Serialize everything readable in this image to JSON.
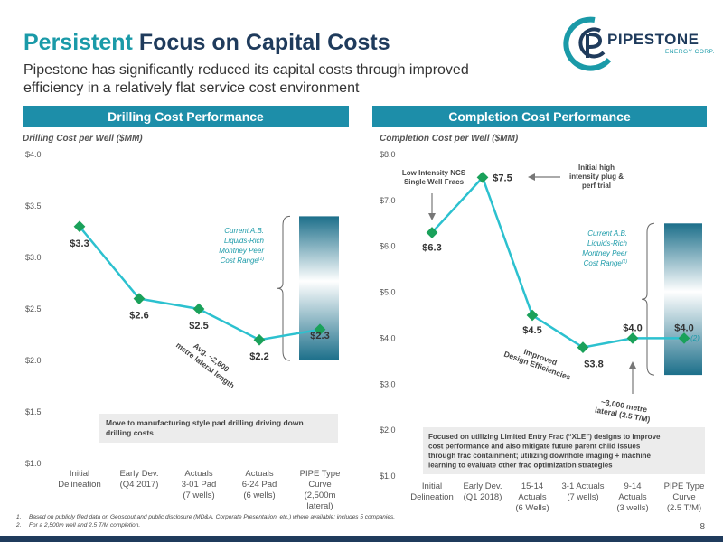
{
  "header": {
    "title_accent": "Persistent",
    "title_rest": " Focus on Capital Costs",
    "subtitle": "Pipestone has significantly reduced its capital costs through improved efficiency in a relatively flat service cost environment"
  },
  "logo": {
    "name": "PIPESTONE",
    "sub": "ENERGY CORP."
  },
  "colors": {
    "accent": "#1a9aa8",
    "navy": "#1f3b5c",
    "line": "#2cc1cf",
    "marker": "#1aa15a",
    "bar": "#1d8ea9"
  },
  "footnotes": [
    {
      "num": "1.",
      "text": "Based on publicly filed data on Geoscout and public disclosure (MD&A, Corporate Presentation, etc.) where available; includes 5 companies."
    },
    {
      "num": "2.",
      "text": "For a 2,500m well and 2.5 T/M completion."
    }
  ],
  "page_number": "8",
  "chart_data": [
    {
      "type": "line",
      "panel_title": "Drilling Cost Performance",
      "title": "Drilling Cost per Well ($MM)",
      "categories": [
        [
          "Initial",
          "Delineation"
        ],
        [
          "Early Dev.",
          "(Q4 2017)"
        ],
        [
          "Actuals",
          "3-01 Pad",
          "(7 wells)"
        ],
        [
          "Actuals",
          "6-24 Pad",
          "(6 wells)"
        ],
        [
          "PIPE Type",
          "Curve",
          "(2,500m",
          "lateral)"
        ]
      ],
      "values": [
        3.3,
        2.6,
        2.5,
        2.2,
        2.3
      ],
      "data_labels": [
        "$3.3",
        "$2.6",
        "$2.5",
        "$2.2",
        "$2.3"
      ],
      "ylim": [
        1.0,
        4.0
      ],
      "yticks": [
        1.0,
        1.5,
        2.0,
        2.5,
        3.0,
        3.5,
        4.0
      ],
      "ytick_labels": [
        "$1.0",
        "$1.5",
        "$2.0",
        "$2.5",
        "$3.0",
        "$3.5",
        "$4.0"
      ],
      "peer_range": [
        2.0,
        3.4
      ],
      "peer_label": [
        "Current A.B.",
        "Liquids-Rich",
        "Montney Peer",
        "Cost Range"
      ],
      "peer_sup": "(1)",
      "rotated_note": [
        "Avg. ~2,600",
        "metre lateral length"
      ],
      "callout": "Move to manufacturing style pad drilling driving down drilling costs"
    },
    {
      "type": "line",
      "panel_title": "Completion Cost Performance",
      "title": "Completion Cost per Well ($MM)",
      "categories": [
        [
          "Initial",
          "Delineation"
        ],
        [
          "Early Dev.",
          "(Q1 2018)"
        ],
        [
          "15-14",
          "Actuals",
          "(6 Wells)"
        ],
        [
          "3-1 Actuals",
          "(7 wells)"
        ],
        [
          "9-14",
          "Actuals",
          "(3 wells)"
        ],
        [
          "PIPE Type",
          "Curve",
          "(2.5 T/M)"
        ]
      ],
      "values": [
        6.3,
        7.5,
        4.5,
        3.8,
        4.0,
        4.0
      ],
      "data_labels": [
        "$6.3",
        "$7.5",
        "$4.5",
        "$3.8",
        "$4.0",
        "$4.0"
      ],
      "ylim": [
        1.0,
        8.0
      ],
      "yticks": [
        1.0,
        2.0,
        3.0,
        4.0,
        5.0,
        6.0,
        7.0,
        8.0
      ],
      "ytick_labels": [
        "$1.0",
        "$2.0",
        "$3.0",
        "$4.0",
        "$5.0",
        "$6.0",
        "$7.0",
        "$8.0"
      ],
      "peer_range": [
        3.2,
        6.5
      ],
      "peer_label": [
        "Current A.B.",
        "Liquids-Rich",
        "Montney Peer",
        "Cost Range"
      ],
      "peer_sup": "(1)",
      "note_2": "(2)",
      "ann_low": [
        "Low Intensity NCS",
        "Single Well Fracs"
      ],
      "ann_high": [
        "Initial high",
        "intensity plug &",
        "perf trial"
      ],
      "rotated_improved": [
        "Improved",
        "Design Efficiencies"
      ],
      "rotated_3000": [
        "~3,000 metre",
        "lateral (2.5 T/M)"
      ],
      "callout": "Focused on utilizing Limited Entry Frac (“XLE”) designs to improve cost performance and also mitigate future parent child issues through frac containment; utilizing downhole imaging + machine learning to evaluate other frac optimization strategies"
    }
  ]
}
